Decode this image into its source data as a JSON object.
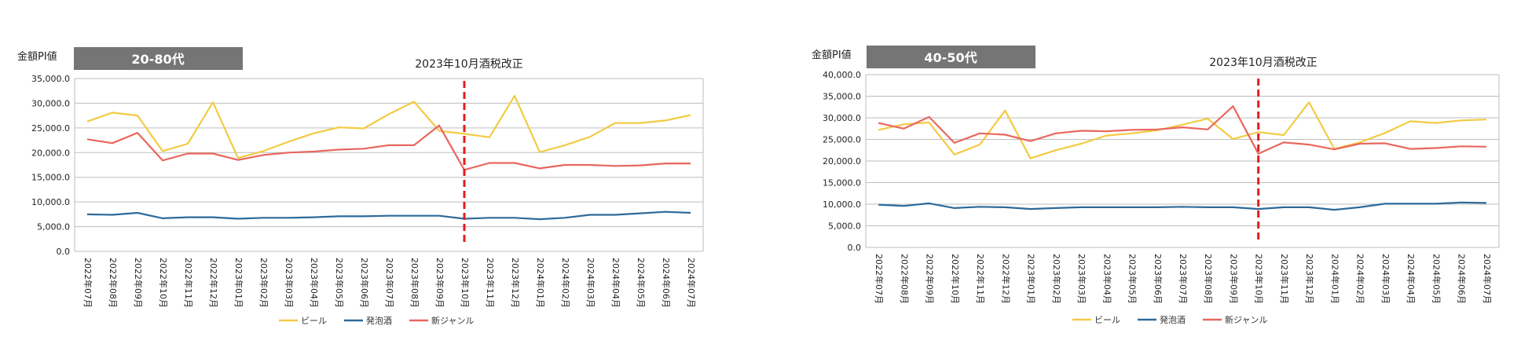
{
  "colors": {
    "beer": "#F2CB44",
    "happoshu": "#2E6A99",
    "shin_genre": "#E8675F",
    "tax_line": "#E51C1C",
    "badge": "#757575",
    "grid": "#BDBDBD"
  },
  "chart_data": [
    {
      "type": "line",
      "badge": "20-80代",
      "ylabel": "金額PI値",
      "annotation": "2023年10月酒税改正",
      "annotation_category": "2023年10月",
      "ylim": [
        0,
        35000
      ],
      "yticks": [
        "35,000.0",
        "30,000.0",
        "25,000.0",
        "20,000.0",
        "15,000.0",
        "10,000.0",
        "5,000.0",
        "0.0"
      ],
      "ytick_values": [
        35000,
        30000,
        25000,
        20000,
        15000,
        10000,
        5000,
        0
      ],
      "categories": [
        "2022年07月",
        "2022年08月",
        "2022年09月",
        "2022年10月",
        "2022年11月",
        "2022年12月",
        "2023年01月",
        "2023年02月",
        "2023年03月",
        "2023年04月",
        "2023年05月",
        "2023年06月",
        "2023年07月",
        "2023年08月",
        "2023年09月",
        "2023年10月",
        "2023年11月",
        "2023年12月",
        "2024年01月",
        "2024年02月",
        "2024年03月",
        "2024年04月",
        "2024年05月",
        "2024年06月",
        "2024年07月"
      ],
      "series": [
        {
          "name": "ビール",
          "color_key": "beer",
          "values": [
            26300,
            28100,
            27500,
            20300,
            21800,
            30200,
            18900,
            20300,
            22200,
            23900,
            25100,
            24900,
            27800,
            30300,
            24400,
            23800,
            23100,
            31500,
            20100,
            21500,
            23200,
            26000,
            26000,
            26500,
            27600
          ]
        },
        {
          "name": "発泡酒",
          "color_key": "happoshu",
          "values": [
            7500,
            7400,
            7800,
            6700,
            6900,
            6900,
            6600,
            6800,
            6800,
            6900,
            7100,
            7100,
            7200,
            7200,
            7200,
            6600,
            6800,
            6800,
            6500,
            6800,
            7400,
            7400,
            7700,
            8000,
            7800
          ]
        },
        {
          "name": "新ジャンル",
          "color_key": "shin_genre",
          "values": [
            22700,
            21900,
            24000,
            18400,
            19800,
            19800,
            18500,
            19500,
            20000,
            20200,
            20600,
            20800,
            21500,
            21500,
            25500,
            16500,
            17900,
            17900,
            16800,
            17500,
            17500,
            17300,
            17400,
            17800,
            17800
          ]
        }
      ],
      "legend": [
        "ビール",
        "発泡酒",
        "新ジャンル"
      ]
    },
    {
      "type": "line",
      "badge": "40-50代",
      "ylabel": "金額PI値",
      "annotation": "2023年10月酒税改正",
      "annotation_category": "2023年10月",
      "ylim": [
        0,
        40000
      ],
      "yticks": [
        "40,000.0",
        "35,000.0",
        "30,000.0",
        "25,000.0",
        "20,000.0",
        "15,000.0",
        "10,000.0",
        "5,000.0",
        "0.0"
      ],
      "ytick_values": [
        40000,
        35000,
        30000,
        25000,
        20000,
        15000,
        10000,
        5000,
        0
      ],
      "categories": [
        "2022年07月",
        "2022年08月",
        "2022年09月",
        "2022年10月",
        "2022年11月",
        "2022年12月",
        "2023年01月",
        "2023年02月",
        "2023年03月",
        "2023年04月",
        "2023年05月",
        "2023年06月",
        "2023年07月",
        "2023年08月",
        "2023年09月",
        "2023年10月",
        "2023年11月",
        "2023年12月",
        "2024年01月",
        "2024年02月",
        "2024年03月",
        "2024年04月",
        "2024年05月",
        "2024年06月",
        "2024年07月"
      ],
      "series": [
        {
          "name": "ビール",
          "color_key": "beer",
          "values": [
            27200,
            28500,
            28900,
            21500,
            23800,
            31700,
            20600,
            22500,
            24000,
            25900,
            26400,
            27100,
            28400,
            29800,
            25100,
            26700,
            26000,
            33600,
            22800,
            24300,
            26500,
            29200,
            28800,
            29400,
            29600
          ]
        },
        {
          "name": "発泡酒",
          "color_key": "happoshu",
          "values": [
            9900,
            9600,
            10200,
            9100,
            9400,
            9300,
            8900,
            9100,
            9300,
            9300,
            9300,
            9300,
            9400,
            9300,
            9300,
            8900,
            9300,
            9300,
            8700,
            9300,
            10100,
            10100,
            10100,
            10400,
            10300
          ]
        },
        {
          "name": "新ジャンル",
          "color_key": "shin_genre",
          "values": [
            28800,
            27500,
            30200,
            24200,
            26400,
            26100,
            24600,
            26400,
            27000,
            26900,
            27200,
            27300,
            27800,
            27300,
            32700,
            21700,
            24300,
            23800,
            22700,
            24000,
            24100,
            22800,
            23000,
            23400,
            23300
          ]
        }
      ],
      "legend": [
        "ビール",
        "発泡酒",
        "新ジャンル"
      ]
    }
  ]
}
